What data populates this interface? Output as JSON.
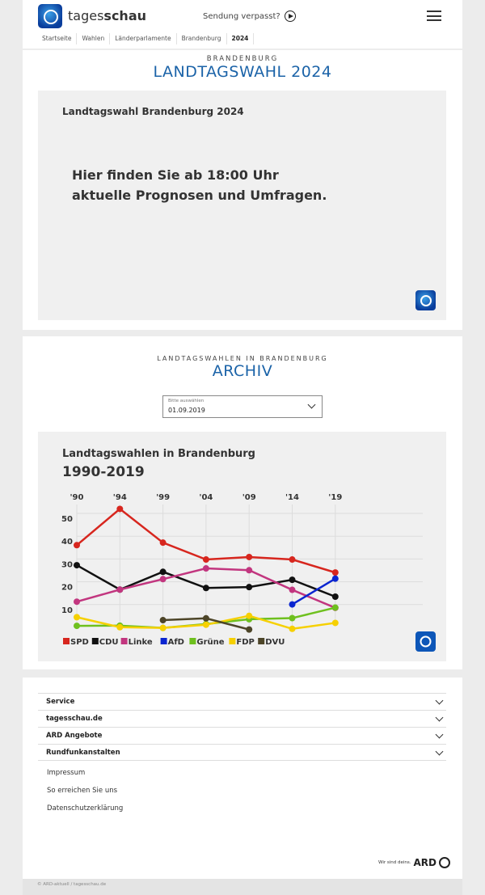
{
  "header": {
    "brand_light": "tages",
    "brand_bold": "schau",
    "sendung": "Sendung verpasst?",
    "breadcrumbs": [
      "Startseite",
      "Wahlen",
      "Länderparlamente",
      "Brandenburg",
      "2024"
    ]
  },
  "section1": {
    "kicker": "BRANDENBURG",
    "title": "LANDTAGSWAHL 2024",
    "box_title": "Landtagswahl Brandenburg 2024",
    "message_line1": "Hier finden Sie ab 18:00 Uhr",
    "message_line2": "aktuelle Prognosen und Umfragen."
  },
  "section2": {
    "kicker": "LANDTAGSWAHLEN IN BRANDENBURG",
    "title": "ARCHIV",
    "select_label": "Bitte auswählen",
    "select_value": "01.09.2019"
  },
  "chart_data": {
    "type": "line",
    "title": "Landtagswahlen in Brandenburg",
    "subtitle": "1990-2019",
    "categories": [
      "'90",
      "'94",
      "'99",
      "'04",
      "'09",
      "'14",
      "'19"
    ],
    "yticks": [
      10,
      20,
      30,
      40,
      50
    ],
    "ylim": [
      0,
      57
    ],
    "grid": true,
    "legend": "bottom-left",
    "series": [
      {
        "name": "SPD",
        "color": "#d7261e",
        "values": [
          38.2,
          54.1,
          39.3,
          31.9,
          33.0,
          31.9,
          26.2
        ]
      },
      {
        "name": "CDU",
        "color": "#111111",
        "values": [
          29.4,
          18.7,
          26.5,
          19.4,
          19.8,
          23.0,
          15.6
        ]
      },
      {
        "name": "Linke",
        "color": "#c2367f",
        "values": [
          13.4,
          18.7,
          23.3,
          28.0,
          27.2,
          18.6,
          10.7
        ]
      },
      {
        "name": "AfD",
        "color": "#0a25d0",
        "values": [
          null,
          null,
          null,
          null,
          null,
          12.2,
          23.5
        ]
      },
      {
        "name": "Grüne",
        "color": "#6ec01e",
        "values": [
          2.8,
          2.9,
          1.9,
          3.6,
          5.7,
          6.2,
          10.8
        ]
      },
      {
        "name": "FDP",
        "color": "#f6d000",
        "values": [
          6.6,
          2.2,
          1.9,
          3.3,
          7.2,
          1.5,
          4.1
        ]
      },
      {
        "name": "DVU",
        "color": "#4d4528",
        "values": [
          null,
          null,
          5.3,
          6.1,
          1.2,
          null,
          null
        ]
      }
    ]
  },
  "footer": {
    "accordions": [
      "Service",
      "tagesschau.de",
      "ARD Angebote",
      "Rundfunkanstalten"
    ],
    "links": [
      "Impressum",
      "So erreichen Sie uns",
      "Datenschutzerklärung"
    ],
    "ard_slogan": "Wir sind deins.",
    "ard_logo": "ARD",
    "copyright": "© ARD-aktuell / tagesschau.de"
  }
}
